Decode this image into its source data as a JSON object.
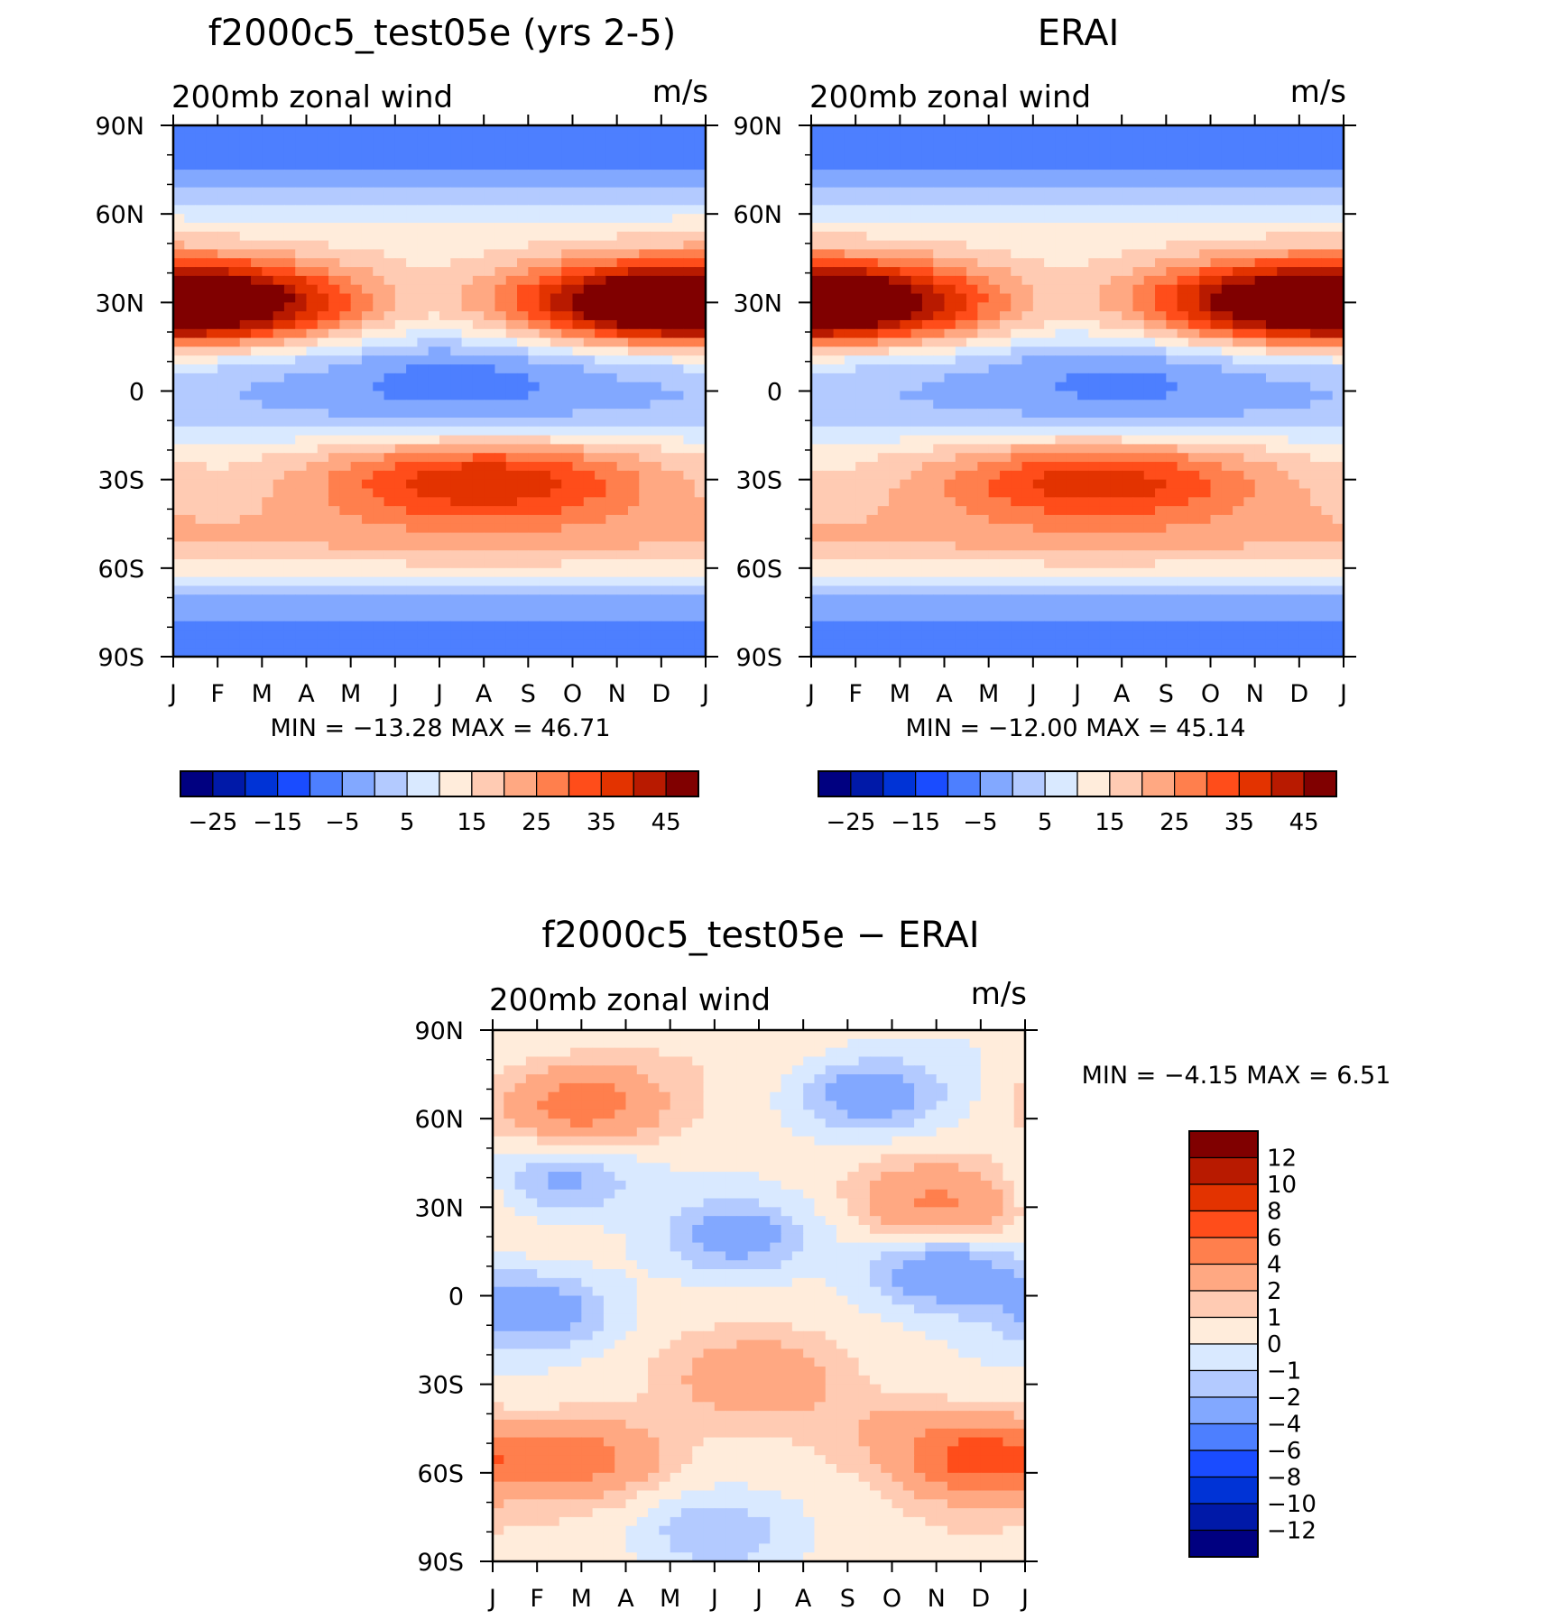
{
  "chart_data": [
    {
      "type": "heatmap",
      "title": "f2000c5_test05e (yrs 2-5)",
      "left_label": "200mb zonal wind",
      "right_label": "m/s",
      "x_tick_labels": [
        "J",
        "F",
        "M",
        "A",
        "M",
        "J",
        "J",
        "A",
        "S",
        "O",
        "N",
        "D",
        "J"
      ],
      "y_tick_labels": [
        "90N",
        "60N",
        "30N",
        "0",
        "30S",
        "60S",
        "90S"
      ],
      "ylim": [
        -90,
        90
      ],
      "min_max_text": "MIN = −13.28 MAX =   46.71",
      "min": -13.28,
      "max": 46.71,
      "colorbar_labels": [
        "−25",
        "−15",
        "−5",
        "5",
        "15",
        "25",
        "35",
        "45"
      ],
      "color_levels": [
        -30,
        -25,
        -20,
        -15,
        -10,
        -5,
        0,
        5,
        10,
        15,
        20,
        25,
        30,
        35,
        40,
        45
      ],
      "colors": [
        "#000080",
        "#0019a8",
        "#0033d6",
        "#1a4cff",
        "#4d7fff",
        "#82a8ff",
        "#b3caff",
        "#d9e9ff",
        "#ffecdb",
        "#ffcbb3",
        "#ffa882",
        "#ff7f4d",
        "#ff4d1a",
        "#e33300",
        "#b81a00",
        "#800000"
      ],
      "jets": [
        {
          "lon": 0.0,
          "lat": 30.0,
          "peak": 46.71
        },
        {
          "lon": 7.0,
          "lat": -30.0,
          "peak": 42
        },
        {
          "lon": 11.5,
          "lat": 30.0,
          "peak": 40
        },
        {
          "lon": 6.5,
          "lat": 5.0,
          "peak": -13.28
        }
      ]
    },
    {
      "type": "heatmap",
      "title": "ERAI",
      "left_label": "200mb zonal wind",
      "right_label": "m/s",
      "x_tick_labels": [
        "J",
        "F",
        "M",
        "A",
        "M",
        "J",
        "J",
        "A",
        "S",
        "O",
        "N",
        "D",
        "J"
      ],
      "y_tick_labels": [
        "90N",
        "60N",
        "30N",
        "0",
        "30S",
        "60S",
        "90S"
      ],
      "ylim": [
        -90,
        90
      ],
      "min_max_text": "MIN = −12.00 MAX =   45.14",
      "min": -12.0,
      "max": 45.14,
      "colorbar_labels": [
        "−25",
        "−15",
        "−5",
        "5",
        "15",
        "25",
        "35",
        "45"
      ],
      "color_levels": [
        -30,
        -25,
        -20,
        -15,
        -10,
        -5,
        0,
        5,
        10,
        15,
        20,
        25,
        30,
        35,
        40,
        45
      ],
      "colors": [
        "#000080",
        "#0019a8",
        "#0033d6",
        "#1a4cff",
        "#4d7fff",
        "#82a8ff",
        "#b3caff",
        "#d9e9ff",
        "#ffecdb",
        "#ffcbb3",
        "#ffa882",
        "#ff7f4d",
        "#ff4d1a",
        "#e33300",
        "#b81a00",
        "#800000"
      ],
      "jets": [
        {
          "lon": 0.0,
          "lat": 30.0,
          "peak": 45.14
        },
        {
          "lon": 6.5,
          "lat": -30.0,
          "peak": 40
        },
        {
          "lon": 11.5,
          "lat": 30.0,
          "peak": 40
        },
        {
          "lon": 7.0,
          "lat": 5.0,
          "peak": -12.0
        }
      ]
    },
    {
      "type": "heatmap",
      "title": "f2000c5_test05e − ERAI",
      "left_label": "200mb zonal wind",
      "right_label": "m/s",
      "x_tick_labels": [
        "J",
        "F",
        "M",
        "A",
        "M",
        "J",
        "J",
        "A",
        "S",
        "O",
        "N",
        "D",
        "J"
      ],
      "y_tick_labels": [
        "90N",
        "60N",
        "30N",
        "0",
        "30S",
        "60S",
        "90S"
      ],
      "ylim": [
        -90,
        90
      ],
      "min_max_text": "MIN =   −4.15  MAX =   6.51",
      "min": -4.15,
      "max": 6.51,
      "colorbar_labels": [
        "12",
        "10",
        "8",
        "6",
        "4",
        "2",
        "1",
        "0",
        "−1",
        "−2",
        "−4",
        "−6",
        "−8",
        "−10",
        "−12"
      ],
      "color_levels": [
        -12,
        -10,
        -8,
        -6,
        -4,
        -2,
        -1,
        0,
        1,
        2,
        4,
        6,
        8,
        10,
        12
      ],
      "colors": [
        "#000080",
        "#0019a8",
        "#0033d6",
        "#1a4cff",
        "#4d7fff",
        "#82a8ff",
        "#b3caff",
        "#d9e9ff",
        "#ffecdb",
        "#ffcbb3",
        "#ffa882",
        "#ff7f4d",
        "#ff4d1a",
        "#e33300",
        "#b81a00",
        "#800000"
      ],
      "blobs": [
        {
          "lon": 2.0,
          "lat": 65.0,
          "amp": 5.0
        },
        {
          "lon": 8.5,
          "lat": 68.0,
          "amp": -3.5
        },
        {
          "lon": 5.5,
          "lat": 20.0,
          "amp": -3.0
        },
        {
          "lon": 1.5,
          "lat": 39.0,
          "amp": -3.0
        },
        {
          "lon": 10.2,
          "lat": 8.0,
          "amp": -4.15
        },
        {
          "lon": 1.0,
          "lat": -5.0,
          "amp": -3.5
        },
        {
          "lon": 10.0,
          "lat": 32.0,
          "amp": 3.5
        },
        {
          "lon": 2.0,
          "lat": -55.0,
          "amp": 4.5
        },
        {
          "lon": 11.0,
          "lat": -55.0,
          "amp": 6.51
        },
        {
          "lon": 6.0,
          "lat": -28.0,
          "amp": 3.0
        },
        {
          "lon": 5.0,
          "lat": -80.0,
          "amp": -2.0
        },
        {
          "lon": 9.0,
          "lat": -45.0,
          "amp": 1.5
        }
      ]
    }
  ]
}
